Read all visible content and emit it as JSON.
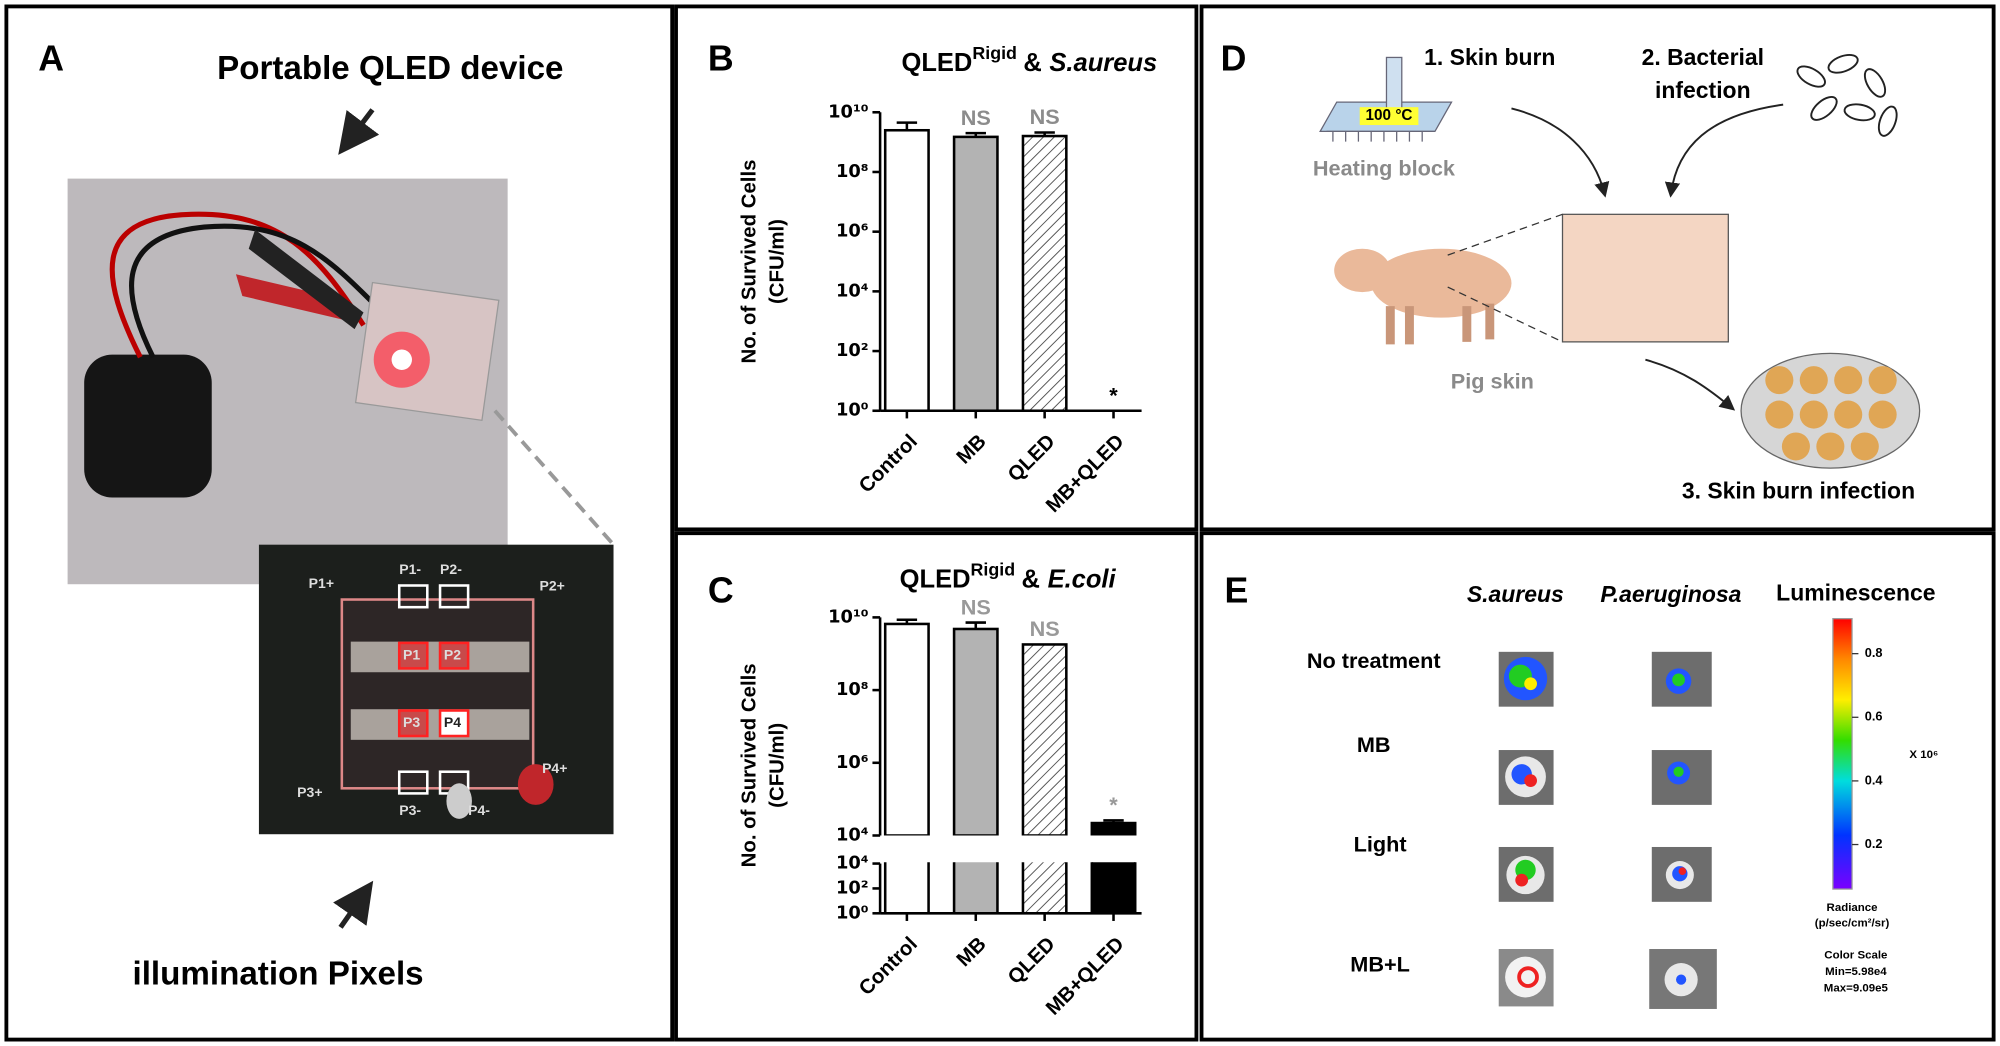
{
  "panel_a": {
    "letter": "A",
    "title": "Portable QLED device",
    "caption": "illumination Pixels",
    "pixel_labels": [
      "P1+",
      "P1-",
      "P2-",
      "P2+",
      "P1",
      "P2",
      "P3",
      "P4",
      "P3+",
      "P3-",
      "P4-",
      "P4+"
    ]
  },
  "chart_data": [
    {
      "type": "bar",
      "letter": "B",
      "title": {
        "main": "QLED",
        "sup": "Rigid",
        "joiner": "&",
        "organism": "S.aureus"
      },
      "ylabel": [
        "No. of Survived Cells",
        "(CFU/ml)"
      ],
      "log_scale": true,
      "categories": [
        "Control",
        "MB",
        "QLED",
        "MB+QLED"
      ],
      "values": [
        2500000000,
        1500000000,
        1600000000,
        1
      ],
      "errors": [
        2000000000,
        500000000,
        500000000,
        null
      ],
      "annotations": [
        null,
        "NS",
        "NS",
        "*"
      ],
      "annotation_colors": [
        null,
        "#8c8c8c",
        "#8c8c8c",
        "#000000"
      ],
      "colors": [
        "#ffffff",
        "#b3b3b3",
        "#ffffff",
        "#000000"
      ],
      "hatched": [
        false,
        false,
        true,
        false
      ],
      "ylim": [
        1,
        10000000000
      ],
      "yticks": [
        {
          "value": 1,
          "label": "10⁰"
        },
        {
          "value": 100,
          "label": "10²"
        },
        {
          "value": 10000,
          "label": "10⁴"
        },
        {
          "value": 1000000,
          "label": "10⁶"
        },
        {
          "value": 100000000,
          "label": "10⁸"
        },
        {
          "value": 10000000000,
          "label": "10¹⁰"
        }
      ]
    },
    {
      "type": "bar",
      "letter": "C",
      "title": {
        "main": "QLED",
        "sup": "Rigid",
        "joiner": "&",
        "organism": "E.coli"
      },
      "ylabel": [
        "No. of Survived Cells",
        "(CFU/ml)"
      ],
      "log_scale": true,
      "categories": [
        "Control",
        "MB",
        "QLED",
        "MB+QLED"
      ],
      "values": [
        6600000000,
        4800000000,
        1800000000,
        22000
      ],
      "errors": [
        2000000000,
        2400000000,
        null,
        4000
      ],
      "annotations": [
        null,
        "NS",
        "NS",
        "*"
      ],
      "annotation_colors": [
        null,
        "#999999",
        "#999999",
        "#999999"
      ],
      "colors": [
        "#ffffff",
        "#b3b3b3",
        "#ffffff",
        "#000000"
      ],
      "hatched": [
        false,
        false,
        true,
        false
      ],
      "ylim": [
        10000,
        10000000000
      ],
      "yticks": [
        {
          "value": 10000,
          "label": "10⁴"
        },
        {
          "value": 1000000,
          "label": "10⁶"
        },
        {
          "value": 100000000,
          "label": "10⁸"
        },
        {
          "value": 10000000000,
          "label": "10¹⁰"
        }
      ],
      "ylim_lower": [
        1,
        10000
      ],
      "yticks_lower": [
        {
          "value": 1,
          "label": "10⁰"
        },
        {
          "value": 100,
          "label": "10²"
        },
        {
          "value": 10000,
          "label": "10⁴"
        }
      ]
    }
  ],
  "panel_d": {
    "letter": "D",
    "step1": "1. Skin burn",
    "step2": [
      "2. Bacterial",
      "infection"
    ],
    "temperature": "100 °C",
    "heating_block": "Heating block",
    "pig_skin": "Pig skin",
    "step3": "3. Skin burn infection"
  },
  "panel_e": {
    "letter": "E",
    "columns": [
      "S.aureus",
      "P.aeruginosa"
    ],
    "legend_title": "Luminescence",
    "rows": [
      "No treatment",
      "MB",
      "Light",
      "MB+L"
    ],
    "colorbar": {
      "lim": [
        0.06,
        0.91
      ],
      "ticks": [
        0.2,
        0.4,
        0.6,
        0.8
      ],
      "multiplier": "X 10⁶"
    },
    "radiance": [
      "Radiance",
      "(p/sec/cm²/sr)"
    ],
    "color_scale": [
      "Color Scale",
      "Min=5.98e4",
      "Max=9.09e5"
    ]
  }
}
